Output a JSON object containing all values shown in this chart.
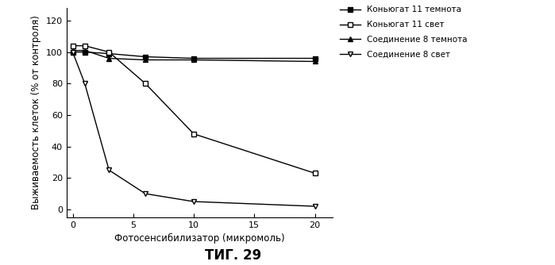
{
  "title": "ΤИГ. 29",
  "xlabel": "Фотосенсибилизатор (микромоль)",
  "ylabel": "Выживаемость клеток (% от контроля)",
  "xlim": [
    -0.5,
    21.5
  ],
  "ylim": [
    -5,
    128
  ],
  "xticks": [
    0,
    5,
    10,
    15,
    20
  ],
  "yticks": [
    0,
    20,
    40,
    60,
    80,
    100,
    120
  ],
  "series": [
    {
      "label": "Коньюгат 11 темнота",
      "x": [
        0,
        1,
        3,
        6,
        10,
        20
      ],
      "y": [
        100,
        100,
        99,
        97,
        96,
        96
      ],
      "color": "#000000",
      "marker": "s",
      "marker_filled": true,
      "linestyle": "-"
    },
    {
      "label": "Коньюгат 11 свет",
      "x": [
        0,
        1,
        3,
        6,
        10,
        20
      ],
      "y": [
        104,
        104,
        100,
        80,
        48,
        23
      ],
      "color": "#000000",
      "marker": "s",
      "marker_filled": false,
      "linestyle": "-"
    },
    {
      "label": "Соединение 8 темнота",
      "x": [
        0,
        1,
        3,
        6,
        10,
        20
      ],
      "y": [
        101,
        101,
        96,
        95,
        95,
        94
      ],
      "color": "#000000",
      "marker": "^",
      "marker_filled": true,
      "linestyle": "-"
    },
    {
      "label": "Соединение 8 свет",
      "x": [
        0,
        1,
        3,
        6,
        10,
        20
      ],
      "y": [
        100,
        80,
        25,
        10,
        5,
        2
      ],
      "color": "#000000",
      "marker": "v",
      "marker_filled": false,
      "linestyle": "-"
    }
  ],
  "background_color": "#ffffff",
  "legend_fontsize": 7.5,
  "axis_fontsize": 8.5,
  "tick_fontsize": 8,
  "title_fontsize": 12
}
